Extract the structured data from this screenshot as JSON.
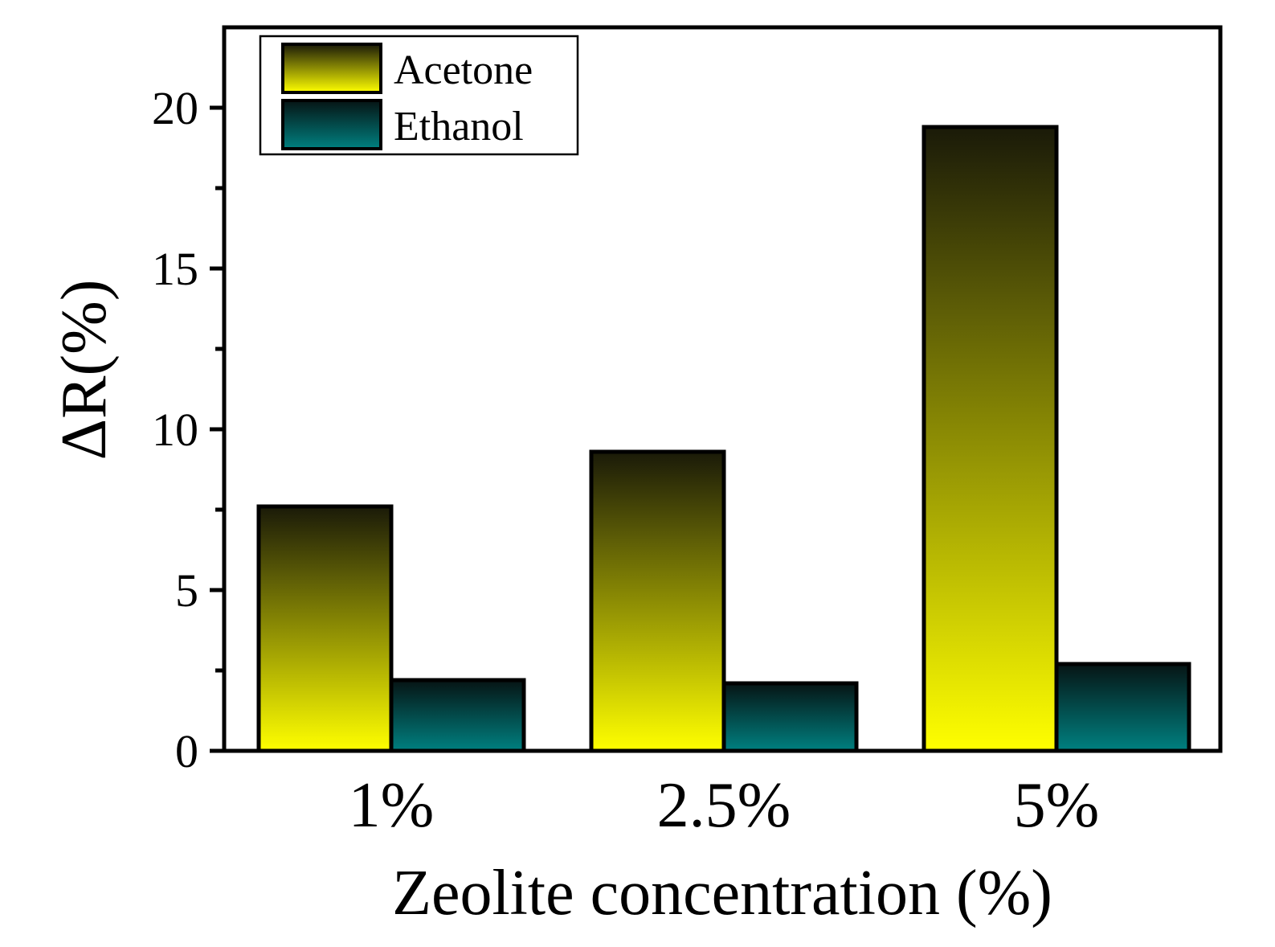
{
  "chart_data": {
    "type": "bar",
    "title": "",
    "categories": [
      "1%",
      "2.5%",
      "5%"
    ],
    "series": [
      {
        "name": "Acetone",
        "values": [
          7.6,
          9.3,
          19.4
        ]
      },
      {
        "name": "Ethanol",
        "values": [
          2.2,
          2.1,
          2.7
        ]
      }
    ],
    "xlabel": "Zeolite concentration (%)",
    "ylabel": "ΔR(%)",
    "ylim": [
      0,
      22.5
    ],
    "yticks": [
      0,
      5,
      10,
      15,
      20
    ],
    "yticks_minor": [
      2.5,
      7.5,
      12.5,
      17.5
    ],
    "ytick_labels": [
      "0",
      "5",
      "10",
      "15",
      "20"
    ],
    "grid": false,
    "legend_position": "top-left"
  },
  "colors": {
    "acetone_top": "#1a1a08",
    "acetone_bottom": "#ffff00",
    "ethanol_top": "#061414",
    "ethanol_bottom": "#008080"
  }
}
